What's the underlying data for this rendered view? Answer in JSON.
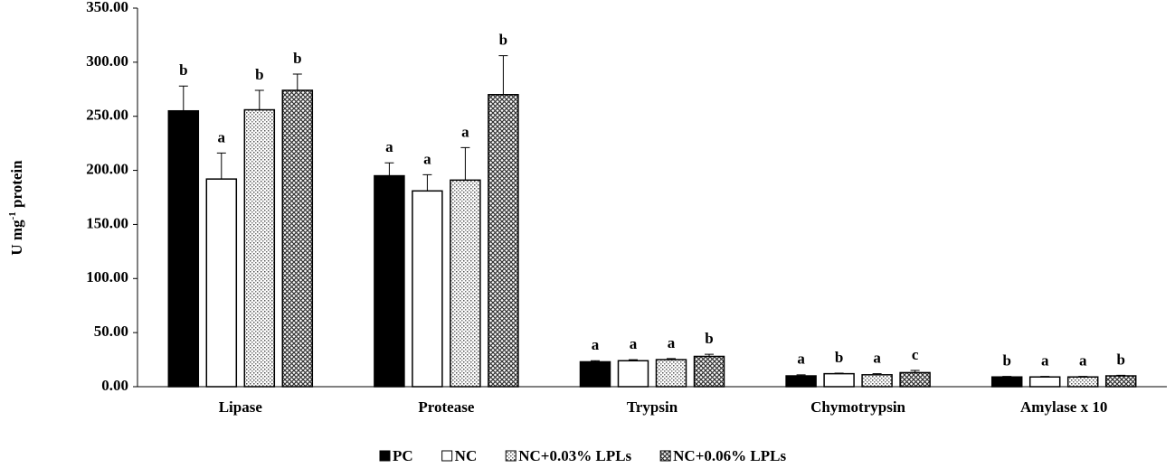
{
  "chart_data": {
    "type": "bar",
    "y_label": {
      "text": "U mg",
      "sup": "-1",
      "rest": " protein"
    },
    "categories": [
      "Lipase",
      "Protease",
      "Trypsin",
      "Chymotrypsin",
      "Amylase x 10"
    ],
    "series": [
      {
        "name": "PC",
        "color": "#000000",
        "pattern": "solid",
        "values": [
          255,
          195,
          23,
          10,
          9
        ],
        "errors": [
          23,
          12,
          1,
          1,
          0.5
        ],
        "letters": [
          "b",
          "a",
          "a",
          "a",
          "b"
        ]
      },
      {
        "name": "NC",
        "color": "#ffffff",
        "pattern": "solid",
        "values": [
          192,
          181,
          24,
          12,
          9
        ],
        "errors": [
          24,
          15,
          1,
          0.5,
          0.5
        ],
        "letters": [
          "a",
          "a",
          "a",
          "b",
          "a"
        ]
      },
      {
        "name": "NC+0.03% LPLs",
        "color": "#000000",
        "pattern": "dots",
        "values": [
          256,
          191,
          25,
          11,
          9
        ],
        "errors": [
          18,
          30,
          1,
          1,
          0.5
        ],
        "letters": [
          "b",
          "a",
          "a",
          "a",
          "a"
        ]
      },
      {
        "name": "NC+0.06% LPLs",
        "color": "#000000",
        "pattern": "crosshatch",
        "values": [
          274,
          270,
          28,
          13,
          10
        ],
        "errors": [
          15,
          36,
          2,
          2,
          0.5
        ],
        "letters": [
          "b",
          "b",
          "b",
          "c",
          "b"
        ]
      }
    ],
    "ylim": [
      0,
      350
    ],
    "yticks": [
      {
        "value": 0,
        "label": "0.00"
      },
      {
        "value": 50,
        "label": "50.00"
      },
      {
        "value": 100,
        "label": "100.00"
      },
      {
        "value": 150,
        "label": "150.00"
      },
      {
        "value": 200,
        "label": "200.00"
      },
      {
        "value": 250,
        "label": "250.00"
      },
      {
        "value": 300,
        "label": "300.00"
      },
      {
        "value": 350,
        "label": "350.00"
      }
    ]
  }
}
